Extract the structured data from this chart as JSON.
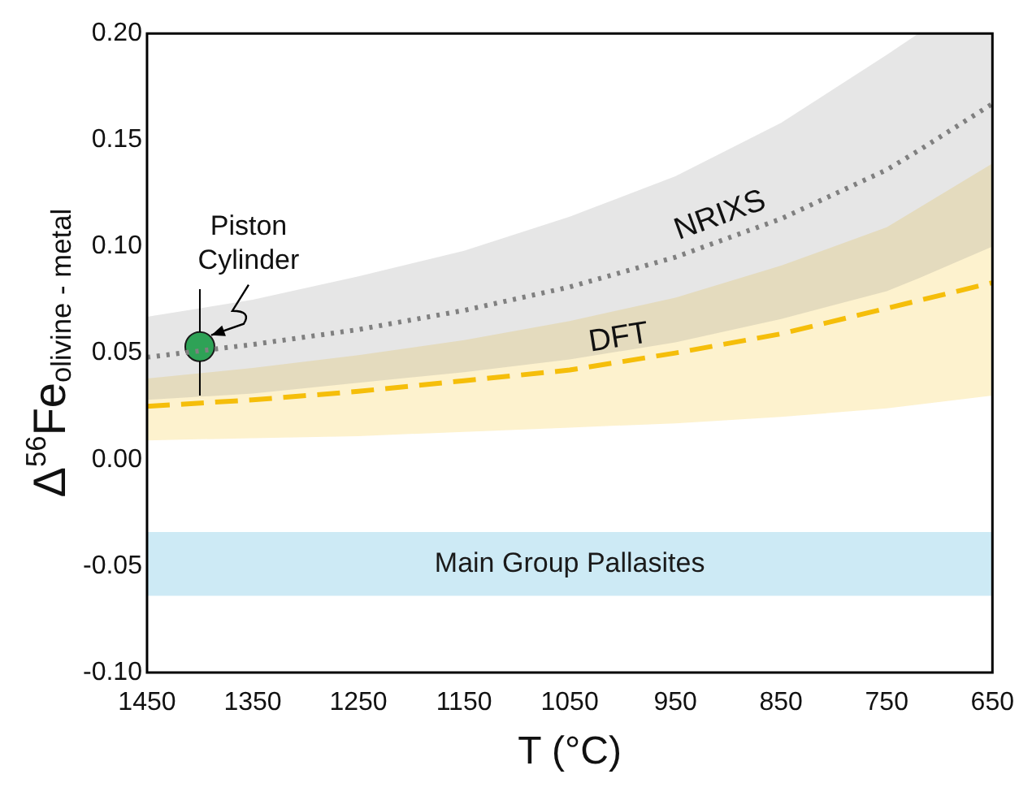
{
  "chart_data": {
    "type": "line",
    "xlabel": "T (°C)",
    "ylabel": "Δ$^{56}$Fe$_{olivine - metal}$",
    "xlim": [
      1450,
      650
    ],
    "xticks": [
      1450,
      1350,
      1250,
      1150,
      1050,
      950,
      850,
      750,
      650
    ],
    "ylim": [
      -0.1,
      0.2
    ],
    "yticks": [
      {
        "value": 0.2,
        "label": "0.20"
      },
      {
        "value": 0.15,
        "label": "0.15"
      },
      {
        "value": 0.1,
        "label": "0.10"
      },
      {
        "value": 0.05,
        "label": "0.05"
      },
      {
        "value": 0,
        "label": "0.00"
      },
      {
        "value": -0.05,
        "label": "-0.05"
      },
      {
        "value": -0.1,
        "label": "-0.10"
      }
    ],
    "grid": false,
    "legend": false,
    "series": [
      {
        "name": "NRIXS",
        "color": "#808080",
        "line_style": "dotted",
        "x": [
          1450,
          1350,
          1250,
          1150,
          1050,
          950,
          850,
          750,
          720,
          650
        ],
        "values": [
          0.048,
          0.054,
          0.061,
          0.07,
          0.081,
          0.095,
          0.113,
          0.136,
          0.145,
          0.167
        ],
        "lower": [
          0.028,
          0.031,
          0.036,
          0.041,
          0.047,
          0.055,
          0.066,
          0.079,
          0.085,
          0.1
        ],
        "upper": [
          0.067,
          0.075,
          0.086,
          0.098,
          0.114,
          0.133,
          0.158,
          0.19,
          0.2,
          0.2
        ]
      },
      {
        "name": "DFT",
        "color": "#f5be0b",
        "line_style": "dashed",
        "x": [
          1450,
          1350,
          1250,
          1150,
          1050,
          950,
          850,
          750,
          650
        ],
        "values": [
          0.025,
          0.028,
          0.032,
          0.037,
          0.042,
          0.05,
          0.059,
          0.071,
          0.083
        ],
        "lower": [
          0.009,
          0.01,
          0.011,
          0.013,
          0.015,
          0.017,
          0.02,
          0.024,
          0.03
        ],
        "upper": [
          0.038,
          0.043,
          0.049,
          0.056,
          0.065,
          0.076,
          0.091,
          0.109,
          0.139
        ]
      },
      {
        "type": "scatter",
        "color": "#1aab4b",
        "marker": "circle",
        "x": [
          1400
        ],
        "values": [
          0.053
        ],
        "errors": [
          [
            0.03,
            0.08
          ]
        ]
      }
    ],
    "bands": [
      {
        "axis": "y",
        "from": -0.064,
        "to": -0.034,
        "label": "Main Group Pallasites",
        "color": "#cdeaf5"
      }
    ],
    "annotations": [
      {
        "text": "Piston Cylinder",
        "x": 1400,
        "y": 0.053
      }
    ]
  }
}
